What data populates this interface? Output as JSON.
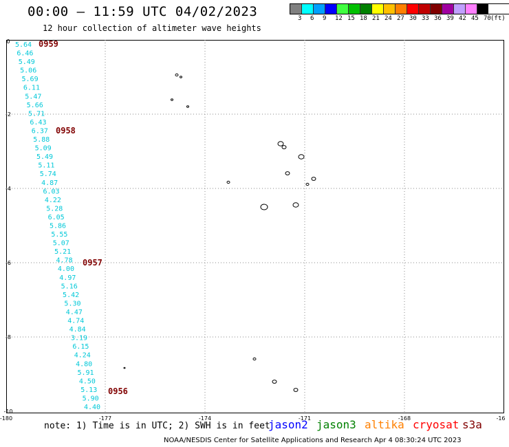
{
  "header": {
    "title": "00:00 – 11:59 UTC 04/02/2023",
    "subtitle": "12 hour collection of altimeter wave heights"
  },
  "legend": {
    "colors": [
      "#808080",
      "#00ffff",
      "#00a0ff",
      "#0000ff",
      "#40ff40",
      "#00c000",
      "#008000",
      "#ffff00",
      "#ffc000",
      "#ff8000",
      "#ff0000",
      "#c00000",
      "#800000",
      "#a000a0",
      "#c0a0ff",
      "#ff80ff",
      "#000000"
    ],
    "labels": [
      "3",
      "6",
      "9",
      "12",
      "15",
      "18",
      "21",
      "24",
      "27",
      "30",
      "33",
      "36",
      "39",
      "42",
      "45",
      "70",
      "(ft)"
    ]
  },
  "axes": {
    "x_labels": [
      "-180",
      "-177",
      "-174",
      "-171",
      "-168",
      "-16"
    ],
    "y_labels": [
      "0",
      "-2",
      "-4",
      "-6",
      "-8",
      "-10"
    ]
  },
  "track": {
    "heights": [
      "5.64",
      "6.46",
      "5.49",
      "5.06",
      "5.69",
      "6.11",
      "5.47",
      "5.66",
      "5.71",
      "6.43",
      "6.37",
      "5.88",
      "5.09",
      "5.49",
      "5.11",
      "5.74",
      "4.87",
      "6.03",
      "4.22",
      "5.28",
      "6.05",
      "5.86",
      "5.55",
      "5.07",
      "5.21",
      "4.78",
      "4.00",
      "4.97",
      "5.16",
      "5.42",
      "5.30",
      "4.47",
      "4.74",
      "4.84",
      "3.19",
      "6.15",
      "4.24",
      "4.80",
      "5.91",
      "4.50",
      "5.13",
      "5.90",
      "4.40"
    ],
    "times": [
      "0959",
      "0958",
      "0957",
      "0956"
    ]
  },
  "footer": {
    "note": "note: 1) Time is in UTC; 2) SWH is in feet",
    "satellites": [
      {
        "name": "jason2",
        "color": "#0000ff"
      },
      {
        "name": "jason3",
        "color": "#008000"
      },
      {
        "name": "altika",
        "color": "#ff8000"
      },
      {
        "name": "cryosat",
        "color": "#ff0000"
      },
      {
        "name": "s3a",
        "color": "#800000"
      }
    ],
    "credit": "NOAA/NESDIS Center for Satellite Applications and Research    Apr  4 08:30:24 UTC 2023"
  }
}
